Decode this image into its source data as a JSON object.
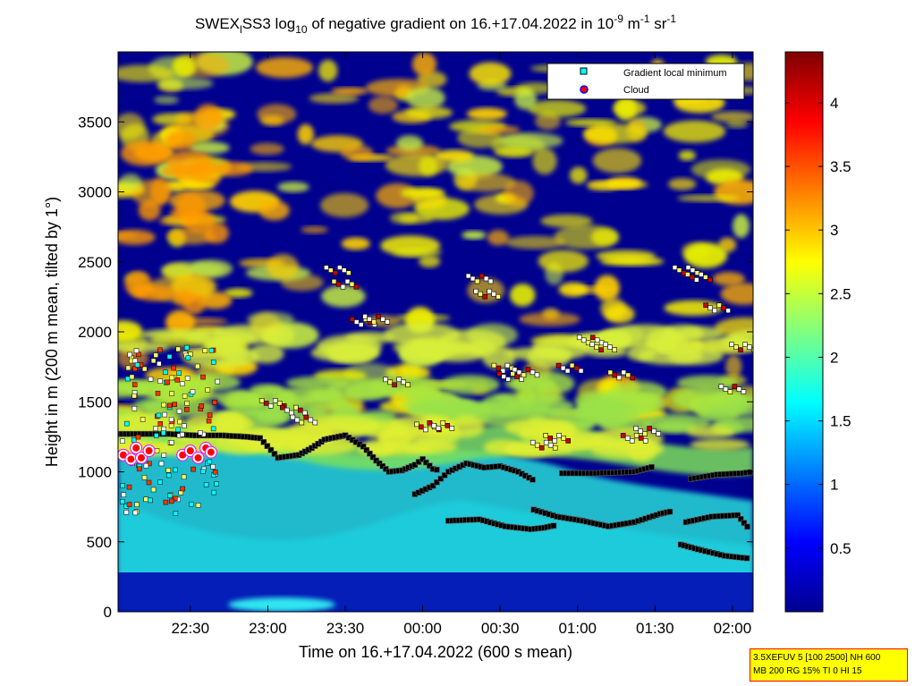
{
  "chart_data": {
    "type": "heatmap",
    "title": {
      "prefix": "SWEX",
      "sub": "l",
      "mid": "SS3 log",
      "sub2": "10",
      "rest": " of negative gradient on 16.+17.04.2022 in 10",
      "sup1": "-9",
      "unit1": " m",
      "sup2": "-1",
      "unit2": " sr",
      "sup3": "-1"
    },
    "xlabel": "Time on 16.+17.04.2022 (600 s mean)",
    "ylabel": "Height in m (200 m mean, tilted by 1°)",
    "x_range": [
      "22:02",
      "02:08"
    ],
    "x_ticks": [
      "22:30",
      "23:00",
      "23:30",
      "00:00",
      "00:30",
      "01:00",
      "01:30",
      "02:00"
    ],
    "x_tick_minutes": [
      28,
      58,
      88,
      118,
      148,
      178,
      208,
      238
    ],
    "x_range_minutes": [
      0,
      246
    ],
    "ylim": [
      0,
      4000
    ],
    "y_ticks": [
      0,
      500,
      1000,
      1500,
      2000,
      2500,
      3000,
      3500
    ],
    "colorbar": {
      "range": [
        0,
        4.4
      ],
      "ticks": [
        0.5,
        1,
        1.5,
        2,
        2.5,
        3,
        3.5,
        4
      ],
      "tick_labels": [
        "0.5",
        "1",
        "1.5",
        "2",
        "2.5",
        "3",
        "3.5",
        "4"
      ],
      "colormap": "jet"
    },
    "legend": {
      "placement": "top-right",
      "entries": [
        {
          "label": "Gradient local minimum",
          "marker": "square",
          "color": "#00ffff"
        },
        {
          "label": "Cloud",
          "marker": "circle",
          "color": "#ff0000",
          "edge": "#0000ff"
        }
      ]
    },
    "series": [
      {
        "name": "Gradient local minimum",
        "note": "approximate main traces (minutes after 22:02, height m)",
        "traces": [
          {
            "x": [
              0,
              10,
              20,
              30,
              40,
              50,
              55
            ],
            "y": [
              1270,
              1270,
              1270,
              1260,
              1260,
              1250,
              1240
            ]
          },
          {
            "x": [
              55,
              62,
              70,
              75,
              80,
              88,
              95,
              100,
              105,
              110,
              115,
              118,
              122,
              125
            ],
            "y": [
              1240,
              1100,
              1120,
              1170,
              1230,
              1260,
              1180,
              1080,
              1000,
              1010,
              1050,
              1090,
              1020,
              1010
            ]
          },
          {
            "x": [
              115,
              122,
              128,
              135,
              142,
              148,
              155,
              162
            ],
            "y": [
              840,
              900,
              1000,
              1060,
              1030,
              1040,
              1000,
              930
            ]
          },
          {
            "x": [
              128,
              140,
              150,
              160,
              165,
              170
            ],
            "y": [
              650,
              660,
              610,
              590,
              600,
              620
            ]
          },
          {
            "x": [
              161,
              170,
              180,
              190,
              200,
              210,
              215
            ],
            "y": [
              730,
              680,
              650,
              610,
              640,
              700,
              720
            ]
          },
          {
            "x": [
              172,
              185,
              200,
              208
            ],
            "y": [
              990,
              990,
              1000,
              1040
            ]
          },
          {
            "x": [
              218,
              226,
              235,
              245
            ],
            "y": [
              480,
              440,
              400,
              380
            ]
          },
          {
            "x": [
              220,
              230,
              240,
              245
            ],
            "y": [
              640,
              680,
              690,
              580
            ]
          },
          {
            "x": [
              222,
              232,
              242,
              246
            ],
            "y": [
              950,
              980,
              990,
              1000
            ]
          }
        ]
      },
      {
        "name": "Cloud",
        "note": "approximate cloud marker clusters (minutes after 22:02, height m)",
        "points": [
          [
            2,
            1120
          ],
          [
            5,
            1090
          ],
          [
            7,
            1170
          ],
          [
            9,
            1100
          ],
          [
            12,
            1150
          ],
          [
            25,
            1120
          ],
          [
            28,
            1150
          ],
          [
            31,
            1100
          ],
          [
            34,
            1170
          ],
          [
            36,
            1140
          ]
        ]
      }
    ]
  },
  "info_box": {
    "line1": "3.5XEFUV 5 [100 2500] NH 600",
    "line2": "MB 200 RG 15% TI 0 HI 15"
  }
}
